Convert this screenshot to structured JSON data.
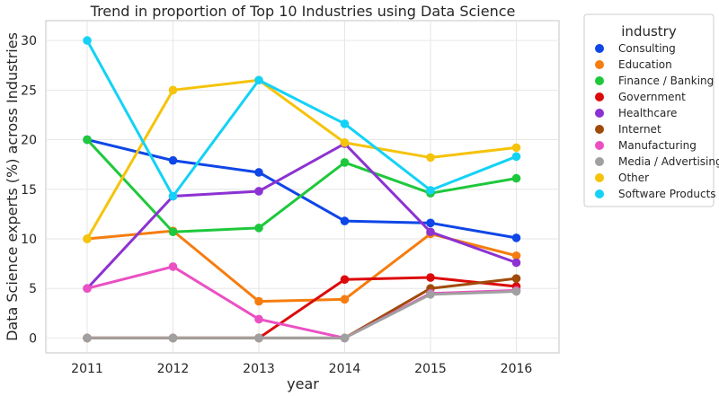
{
  "chart_data": {
    "type": "line",
    "title": "Trend in proportion of Top 10 Industries using Data Science",
    "xlabel": "year",
    "ylabel": "Data Science experts (%) across Industries",
    "categories": [
      "2011",
      "2012",
      "2013",
      "2014",
      "2015",
      "2016"
    ],
    "ylim": [
      -1.5,
      32
    ],
    "yticks": [
      0,
      5,
      10,
      15,
      20,
      25,
      30
    ],
    "grid": true,
    "legend": {
      "title": "industry",
      "placement": "outside-right"
    },
    "series": [
      {
        "name": "Consulting",
        "color": "#0f46e6",
        "values": [
          20.0,
          17.9,
          16.7,
          11.8,
          11.6,
          10.1
        ]
      },
      {
        "name": "Education",
        "color": "#f57d0f",
        "values": [
          10.0,
          10.8,
          3.7,
          3.9,
          10.5,
          8.3
        ]
      },
      {
        "name": "Finance / Banking",
        "color": "#1ec83c",
        "values": [
          20.0,
          10.7,
          11.1,
          17.7,
          14.6,
          16.1
        ]
      },
      {
        "name": "Government",
        "color": "#dc0a0a",
        "values": [
          0.0,
          0.0,
          0.0,
          5.9,
          6.1,
          5.2
        ]
      },
      {
        "name": "Healthcare",
        "color": "#8c32d2",
        "values": [
          5.0,
          14.3,
          14.8,
          19.6,
          10.7,
          7.6
        ]
      },
      {
        "name": "Internet",
        "color": "#a04b0a",
        "values": [
          0.0,
          0.0,
          0.0,
          0.0,
          5.0,
          6.0
        ]
      },
      {
        "name": "Manufacturing",
        "color": "#eb50c3",
        "values": [
          5.0,
          7.2,
          1.9,
          0.0,
          4.5,
          4.8
        ]
      },
      {
        "name": "Media / Advertising",
        "color": "#a0a0a0",
        "values": [
          0.0,
          0.0,
          0.0,
          0.0,
          4.4,
          4.7
        ]
      },
      {
        "name": "Other",
        "color": "#f5c30a",
        "values": [
          10.0,
          25.0,
          26.0,
          19.7,
          18.2,
          19.2
        ]
      },
      {
        "name": "Software Products",
        "color": "#14d2f5",
        "values": [
          30.0,
          14.3,
          26.0,
          21.6,
          14.9,
          18.3
        ]
      }
    ]
  }
}
